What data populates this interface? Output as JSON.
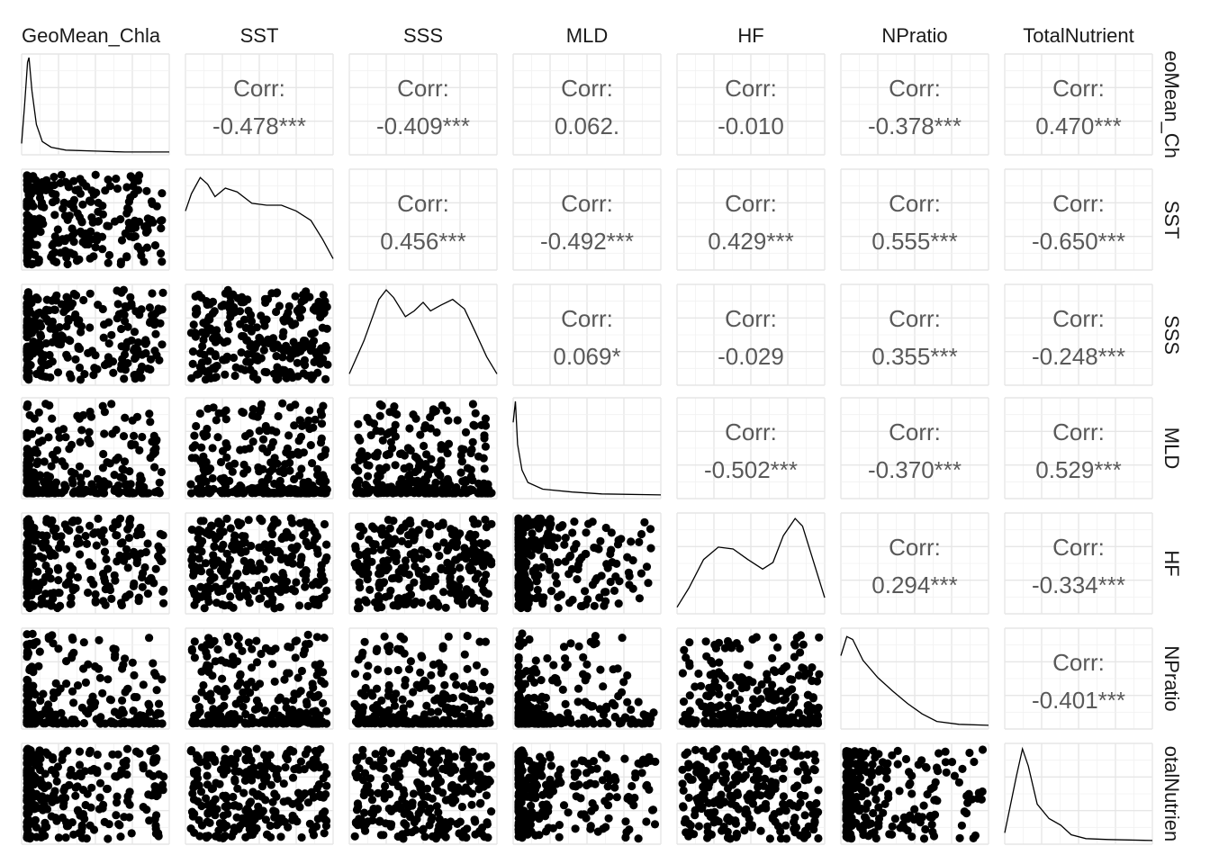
{
  "chart_data": {
    "type": "scatter",
    "variables": [
      "GeoMean_Chla",
      "SST",
      "SSS",
      "MLD",
      "HF",
      "NPratio",
      "TotalNutrient"
    ],
    "row_strip_labels": [
      "eoMean_Ch",
      "SST",
      "SSS",
      "MLD",
      "HF",
      "NPratio",
      "otalNutrien"
    ],
    "corr_label": "Corr:",
    "correlations": [
      {
        "row": 0,
        "col": 1,
        "text": "-0.478***"
      },
      {
        "row": 0,
        "col": 2,
        "text": "-0.409***"
      },
      {
        "row": 0,
        "col": 3,
        "text": "0.062."
      },
      {
        "row": 0,
        "col": 4,
        "text": "-0.010"
      },
      {
        "row": 0,
        "col": 5,
        "text": "-0.378***"
      },
      {
        "row": 0,
        "col": 6,
        "text": "0.470***"
      },
      {
        "row": 1,
        "col": 2,
        "text": "0.456***"
      },
      {
        "row": 1,
        "col": 3,
        "text": "-0.492***"
      },
      {
        "row": 1,
        "col": 4,
        "text": "0.429***"
      },
      {
        "row": 1,
        "col": 5,
        "text": "0.555***"
      },
      {
        "row": 1,
        "col": 6,
        "text": "-0.650***"
      },
      {
        "row": 2,
        "col": 3,
        "text": "0.069*"
      },
      {
        "row": 2,
        "col": 4,
        "text": "-0.029"
      },
      {
        "row": 2,
        "col": 5,
        "text": "0.355***"
      },
      {
        "row": 2,
        "col": 6,
        "text": "-0.248***"
      },
      {
        "row": 3,
        "col": 4,
        "text": "-0.502***"
      },
      {
        "row": 3,
        "col": 5,
        "text": "-0.370***"
      },
      {
        "row": 3,
        "col": 6,
        "text": "0.529***"
      },
      {
        "row": 4,
        "col": 5,
        "text": "0.294***"
      },
      {
        "row": 4,
        "col": 6,
        "text": "-0.334***"
      },
      {
        "row": 5,
        "col": 6,
        "text": "-0.401***"
      }
    ],
    "densities": [
      [
        [
          0,
          0.1
        ],
        [
          0.02,
          0.5
        ],
        [
          0.04,
          0.95
        ],
        [
          0.05,
          1.0
        ],
        [
          0.07,
          0.65
        ],
        [
          0.1,
          0.3
        ],
        [
          0.14,
          0.12
        ],
        [
          0.2,
          0.06
        ],
        [
          0.3,
          0.03
        ],
        [
          0.5,
          0.02
        ],
        [
          0.7,
          0.01
        ],
        [
          1,
          0.01
        ]
      ],
      [
        [
          0,
          0.6
        ],
        [
          0.04,
          0.78
        ],
        [
          0.1,
          0.95
        ],
        [
          0.15,
          0.88
        ],
        [
          0.2,
          0.75
        ],
        [
          0.27,
          0.84
        ],
        [
          0.35,
          0.8
        ],
        [
          0.45,
          0.68
        ],
        [
          0.55,
          0.66
        ],
        [
          0.65,
          0.66
        ],
        [
          0.75,
          0.6
        ],
        [
          0.85,
          0.5
        ],
        [
          0.93,
          0.3
        ],
        [
          1,
          0.1
        ]
      ],
      [
        [
          0,
          0.1
        ],
        [
          0.1,
          0.45
        ],
        [
          0.2,
          0.88
        ],
        [
          0.25,
          0.98
        ],
        [
          0.3,
          0.9
        ],
        [
          0.38,
          0.7
        ],
        [
          0.44,
          0.76
        ],
        [
          0.5,
          0.85
        ],
        [
          0.55,
          0.76
        ],
        [
          0.62,
          0.82
        ],
        [
          0.7,
          0.88
        ],
        [
          0.78,
          0.78
        ],
        [
          0.85,
          0.55
        ],
        [
          0.93,
          0.28
        ],
        [
          1,
          0.1
        ]
      ],
      [
        [
          0,
          0.78
        ],
        [
          0.015,
          1.0
        ],
        [
          0.03,
          0.55
        ],
        [
          0.06,
          0.28
        ],
        [
          0.1,
          0.15
        ],
        [
          0.2,
          0.08
        ],
        [
          0.4,
          0.05
        ],
        [
          0.6,
          0.03
        ],
        [
          1,
          0.02
        ]
      ],
      [
        [
          0,
          0.05
        ],
        [
          0.08,
          0.25
        ],
        [
          0.18,
          0.55
        ],
        [
          0.28,
          0.68
        ],
        [
          0.38,
          0.66
        ],
        [
          0.48,
          0.55
        ],
        [
          0.58,
          0.45
        ],
        [
          0.65,
          0.52
        ],
        [
          0.72,
          0.8
        ],
        [
          0.8,
          0.98
        ],
        [
          0.85,
          0.9
        ],
        [
          0.92,
          0.55
        ],
        [
          1,
          0.15
        ]
      ],
      [
        [
          0,
          0.75
        ],
        [
          0.04,
          0.95
        ],
        [
          0.08,
          0.92
        ],
        [
          0.15,
          0.7
        ],
        [
          0.25,
          0.52
        ],
        [
          0.35,
          0.38
        ],
        [
          0.45,
          0.25
        ],
        [
          0.55,
          0.14
        ],
        [
          0.65,
          0.06
        ],
        [
          0.8,
          0.03
        ],
        [
          1,
          0.02
        ]
      ],
      [
        [
          0,
          0.1
        ],
        [
          0.08,
          0.7
        ],
        [
          0.12,
          0.98
        ],
        [
          0.16,
          0.8
        ],
        [
          0.22,
          0.4
        ],
        [
          0.3,
          0.25
        ],
        [
          0.38,
          0.18
        ],
        [
          0.45,
          0.08
        ],
        [
          0.55,
          0.04
        ],
        [
          0.7,
          0.03
        ],
        [
          1,
          0.02
        ]
      ]
    ]
  }
}
